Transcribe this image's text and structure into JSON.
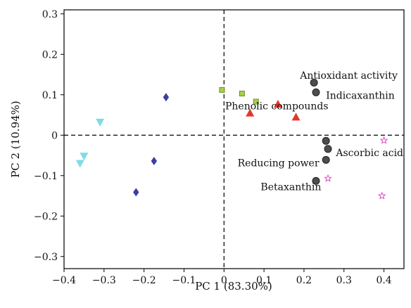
{
  "chart_data": {
    "type": "scatter",
    "xlabel": "PC 1 (83.30%)",
    "ylabel": "PC 2 (10.94%)",
    "xlim": [
      -0.4,
      0.45
    ],
    "ylim": [
      -0.33,
      0.31
    ],
    "xticks": [
      -0.4,
      -0.3,
      -0.2,
      -0.1,
      0,
      0.1,
      0.2,
      0.3,
      0.4
    ],
    "xtick_labels": [
      "−0.4",
      "−0.3",
      "−0.2",
      "−0.1",
      "0",
      "0.1",
      "0.2",
      "0.3",
      "0.4"
    ],
    "yticks": [
      -0.3,
      -0.2,
      -0.1,
      0,
      0.1,
      0.2,
      0.3
    ],
    "ytick_labels": [
      "−0.3",
      "−0.2",
      "−0.1",
      "0",
      "0.1",
      "0.2",
      "0.3"
    ],
    "reference_lines": {
      "x": 0,
      "y": 0,
      "style": "dashed"
    },
    "grid": false,
    "series": [
      {
        "marker": "triangle-down",
        "color": "#7fdbe8",
        "points": [
          [
            -0.31,
            0.032
          ],
          [
            -0.35,
            -0.052
          ],
          [
            -0.36,
            -0.07
          ]
        ]
      },
      {
        "marker": "diamond",
        "color": "#3b3fa3",
        "points": [
          [
            -0.145,
            0.094
          ],
          [
            -0.175,
            -0.064
          ],
          [
            -0.22,
            -0.141
          ]
        ]
      },
      {
        "marker": "square",
        "color": "#a6d14a",
        "points": [
          [
            -0.005,
            0.112
          ],
          [
            0.045,
            0.103
          ],
          [
            0.08,
            0.083
          ]
        ]
      },
      {
        "marker": "triangle-up",
        "color": "#e8342a",
        "points": [
          [
            0.065,
            0.055
          ],
          [
            0.135,
            0.077
          ],
          [
            0.18,
            0.045
          ]
        ]
      },
      {
        "marker": "star",
        "color": "#d94fc6",
        "points": [
          [
            0.26,
            -0.107
          ],
          [
            0.4,
            -0.013
          ],
          [
            0.395,
            -0.15
          ]
        ]
      },
      {
        "marker": "circle",
        "color": "#4d4d4d",
        "points": [
          [
            0.225,
            0.13
          ],
          [
            0.23,
            0.106
          ],
          [
            0.255,
            -0.014
          ],
          [
            0.26,
            -0.034
          ],
          [
            0.255,
            -0.061
          ],
          [
            0.23,
            -0.113
          ]
        ]
      }
    ],
    "annotations": [
      {
        "text": "Antioxidant activity",
        "x": 0.19,
        "y": 0.14,
        "anchor": "start"
      },
      {
        "text": "Indicaxanthin",
        "x": 0.255,
        "y": 0.09,
        "anchor": "start"
      },
      {
        "text": "Phenolic compounds",
        "x": 0.003,
        "y": 0.064,
        "anchor": "start"
      },
      {
        "text": "Ascorbic acid",
        "x": 0.28,
        "y": -0.052,
        "anchor": "start"
      },
      {
        "text": "Reducing power",
        "x": 0.238,
        "y": -0.077,
        "anchor": "end"
      },
      {
        "text": "Betaxanthin",
        "x": 0.243,
        "y": -0.136,
        "anchor": "end"
      }
    ]
  }
}
